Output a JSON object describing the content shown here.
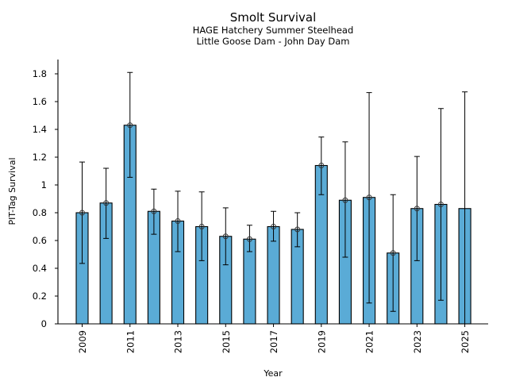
{
  "chart_data": {
    "type": "bar",
    "title": "Smolt Survival",
    "subtitle_lines": [
      "HAGE Hatchery Summer Steelhead",
      "Little Goose Dam - John Day Dam"
    ],
    "xlabel": "Year",
    "ylabel": "PIT-Tag Survival",
    "ylim": [
      0,
      1.9
    ],
    "yticks": [
      0,
      0.2,
      0.4,
      0.6,
      0.8,
      1,
      1.2,
      1.4,
      1.6,
      1.8
    ],
    "ytick_labels": [
      "0",
      "0.2",
      "0.4",
      "0.6",
      "0.8",
      "1",
      "1.2",
      "1.4",
      "1.6",
      "1.8"
    ],
    "xtick_labels": [
      "2009",
      "2011",
      "2013",
      "2015",
      "2017",
      "2019",
      "2021",
      "2023",
      "2025"
    ],
    "grid": false,
    "legend": "none",
    "bar_color": "#5aabd6",
    "categories": [
      "2009",
      "2010",
      "2011",
      "2012",
      "2013",
      "2014",
      "2015",
      "2016",
      "2017",
      "2018",
      "2019",
      "2020",
      "2021",
      "2022",
      "2023",
      "2024",
      "2025"
    ],
    "values": [
      0.8,
      0.87,
      1.43,
      0.81,
      0.74,
      0.7,
      0.63,
      0.61,
      0.7,
      0.68,
      1.14,
      0.89,
      0.91,
      0.51,
      0.83,
      0.86,
      0.83
    ],
    "error_upper": [
      1.165,
      1.12,
      1.81,
      0.97,
      0.955,
      0.95,
      0.835,
      0.71,
      0.81,
      0.8,
      1.345,
      1.31,
      1.665,
      0.93,
      1.205,
      1.55,
      1.67
    ],
    "error_lower": [
      0.435,
      0.615,
      1.055,
      0.645,
      0.52,
      0.455,
      0.425,
      0.52,
      0.595,
      0.555,
      0.93,
      0.48,
      0.15,
      0.09,
      0.455,
      0.17,
      -0.01
    ],
    "point_marker": [
      true,
      true,
      true,
      true,
      true,
      true,
      true,
      true,
      true,
      true,
      true,
      true,
      true,
      true,
      true,
      true,
      false
    ]
  }
}
